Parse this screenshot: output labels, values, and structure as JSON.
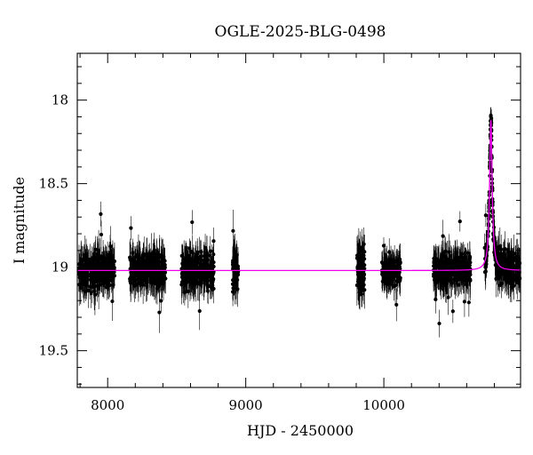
{
  "chart_data": {
    "type": "scatter",
    "title": "OGLE-2025-BLG-0498",
    "xlabel": "HJD - 2450000",
    "ylabel": "I magnitude",
    "xlim": [
      7780,
      10990
    ],
    "ylim": [
      19.72,
      17.72
    ],
    "y_inverted": true,
    "x_major_ticks": [
      8000,
      9000,
      10000
    ],
    "x_tick_labels": [
      "8000",
      "9000",
      "10000"
    ],
    "x_minor_step": 200,
    "y_major_ticks": [
      18,
      18.5,
      19,
      19.5
    ],
    "y_tick_labels": [
      "18",
      "18.5",
      "19",
      "19.5"
    ],
    "y_minor_step": 0.1,
    "grid": false,
    "baseline_mag": 19.02,
    "observing_seasons": [
      [
        7790,
        8050,
        0.095,
        0.09
      ],
      [
        8160,
        8425,
        0.085,
        0.09
      ],
      [
        8535,
        8770,
        0.085,
        0.09
      ],
      [
        8905,
        8945,
        0.11,
        0.1
      ],
      [
        9805,
        9860,
        0.13,
        0.1
      ],
      [
        9985,
        10120,
        0.075,
        0.08
      ],
      [
        10360,
        10630,
        0.08,
        0.085
      ],
      [
        10730,
        10990,
        0.09,
        0.085
      ]
    ],
    "event": {
      "t0": 10775,
      "peak_mag": 18.12,
      "tE": 9
    },
    "series": [
      {
        "kind": "observations",
        "color": "#000000"
      },
      {
        "kind": "model",
        "color": "#ee00ee"
      }
    ]
  }
}
